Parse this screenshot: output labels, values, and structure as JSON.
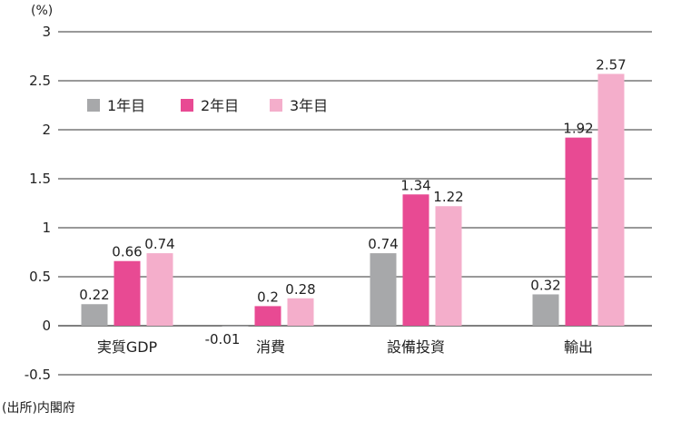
{
  "unit_label": "(%)",
  "source": "(出所)内閣府",
  "colors": {
    "year1": "#a7a8aa",
    "year2": "#e84a93",
    "year3": "#f4aecb",
    "negative_label": "#c2157a",
    "grid": "#333333"
  },
  "chart_data": {
    "type": "bar",
    "title": "",
    "xlabel": "",
    "ylabel": "(%)",
    "ylim": [
      -0.5,
      3
    ],
    "yticks": [
      3,
      2.5,
      2,
      1.5,
      1,
      0.5,
      0,
      -0.5
    ],
    "ytick_labels": [
      "3",
      "2.5",
      "2",
      "1.5",
      "1",
      "0.5",
      "0",
      "-0.5"
    ],
    "grid": true,
    "legend_position": "top-left",
    "categories": [
      "実質GDP",
      "消費",
      "設備投資",
      "輸出"
    ],
    "series": [
      {
        "name": "1年目",
        "values": [
          0.22,
          -0.01,
          0.74,
          0.32
        ],
        "labels": [
          "0.22",
          "-0.01",
          "0.74",
          "0.32"
        ]
      },
      {
        "name": "2年目",
        "values": [
          0.66,
          0.2,
          1.34,
          1.92
        ],
        "labels": [
          "0.66",
          "0.2",
          "1.34",
          "1.92"
        ]
      },
      {
        "name": "3年目",
        "values": [
          0.74,
          0.28,
          1.22,
          2.57
        ],
        "labels": [
          "0.74",
          "0.28",
          "1.22",
          "2.57"
        ]
      }
    ]
  }
}
